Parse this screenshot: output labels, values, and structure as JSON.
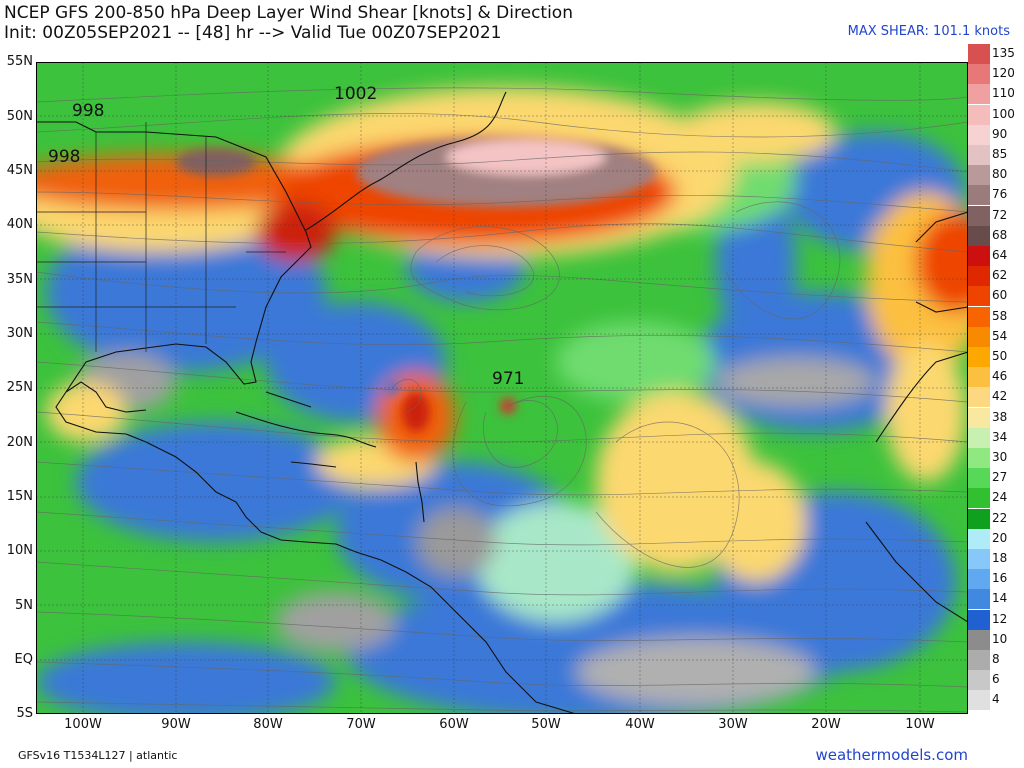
{
  "header": {
    "title": "NCEP GFS 200-850 hPa Deep Layer Wind Shear [knots] & Direction",
    "subtitle": "Init: 00Z05SEP2021 -- [48] hr --> Valid Tue 00Z07SEP2021",
    "max_shear": "MAX SHEAR: 101.1 knots"
  },
  "footer": {
    "model_info": "GFSv16 T1534L127 | atlantic",
    "site": "weathermodels.com"
  },
  "lat_labels": [
    "55N",
    "50N",
    "45N",
    "40N",
    "35N",
    "30N",
    "25N",
    "20N",
    "15N",
    "10N",
    "5N",
    "EQ",
    "5S"
  ],
  "lon_labels": [
    "100W",
    "90W",
    "80W",
    "70W",
    "60W",
    "50W",
    "40W",
    "30W",
    "20W",
    "10W"
  ],
  "pressure_labels": [
    "998",
    "998",
    "1002",
    "971"
  ],
  "scale": {
    "labels": [
      "135",
      "120",
      "110",
      "100",
      "90",
      "85",
      "80",
      "76",
      "72",
      "68",
      "64",
      "62",
      "60",
      "58",
      "54",
      "50",
      "46",
      "42",
      "38",
      "34",
      "30",
      "27",
      "24",
      "22",
      "20",
      "18",
      "16",
      "14",
      "12",
      "10",
      "8",
      "6",
      "4"
    ],
    "colors": [
      "#d85050",
      "#e87878",
      "#f0a0a0",
      "#f5bcbc",
      "#f7d2d2",
      "#e2c2c2",
      "#b89a9a",
      "#9a7c7c",
      "#806262",
      "#684c4c",
      "#cc1010",
      "#e02800",
      "#ee4400",
      "#f86400",
      "#f88a00",
      "#fca800",
      "#fcc040",
      "#fcd880",
      "#f8e8a0",
      "#c8f0b0",
      "#90e880",
      "#58d858",
      "#30c030",
      "#10a020",
      "#b0ecf8",
      "#88c8f8",
      "#60a8f0",
      "#4088e0",
      "#2060d0",
      "#8c8c8c",
      "#acacac",
      "#c8c8c8",
      "#e0e0e0"
    ]
  }
}
